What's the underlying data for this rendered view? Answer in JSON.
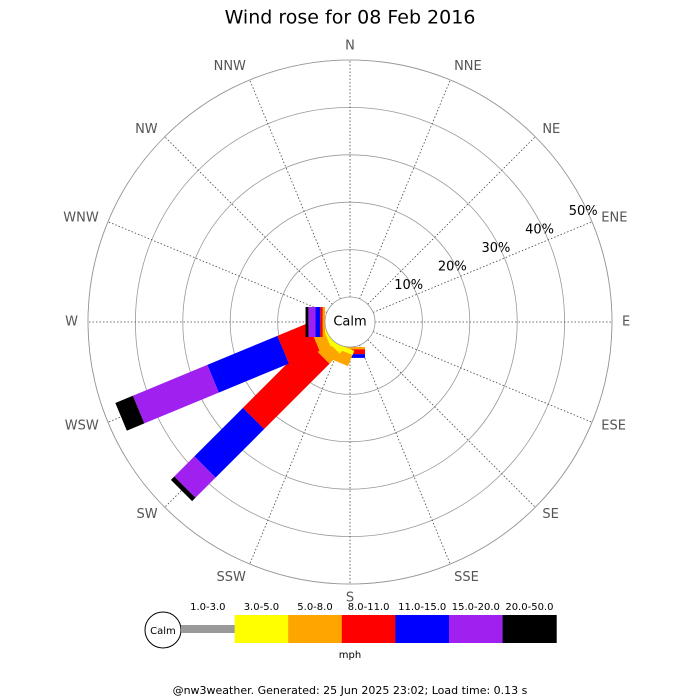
{
  "chart_data": {
    "type": "windrose",
    "title": "Wind rose for 08 Feb 2016",
    "directions": [
      "N",
      "NNE",
      "NE",
      "ENE",
      "E",
      "ESE",
      "SE",
      "SSE",
      "S",
      "SSW",
      "SW",
      "WSW",
      "W",
      "WNW",
      "NW",
      "NNW"
    ],
    "calm_label": "Calm",
    "rlim": [
      0,
      50
    ],
    "rticks": [
      {
        "value": 10,
        "label": "10%"
      },
      {
        "value": 20,
        "label": "20%"
      },
      {
        "value": 30,
        "label": "30%"
      },
      {
        "value": 40,
        "label": "40%"
      },
      {
        "value": 50,
        "label": "50%"
      }
    ],
    "series": [
      {
        "name": "1.0-3.0",
        "color": "#999999",
        "values": [
          0,
          0,
          0,
          0,
          0,
          0,
          0,
          0,
          0,
          0,
          0,
          0,
          0,
          0,
          0,
          0
        ]
      },
      {
        "name": "3.0-5.0",
        "color": "#ffff00",
        "values": [
          0,
          0,
          0,
          0,
          0,
          0,
          0,
          0,
          0,
          1,
          1,
          0.5,
          0,
          0,
          0,
          0
        ]
      },
      {
        "name": "5.0-8.0",
        "color": "#ffa500",
        "values": [
          0,
          0,
          0,
          0,
          0,
          0,
          0,
          0,
          0.5,
          2.5,
          3,
          2.5,
          0.5,
          0,
          0,
          0
        ]
      },
      {
        "name": "8.0-11.0",
        "color": "#ff0000",
        "values": [
          0,
          0,
          0,
          0,
          0,
          0,
          0,
          0,
          1,
          0,
          19.5,
          7,
          0.5,
          0,
          0,
          0
        ]
      },
      {
        "name": "11.0-15.0",
        "color": "#0000ff",
        "values": [
          0,
          0,
          0,
          0,
          0,
          0,
          0,
          0,
          0.8,
          0,
          14.5,
          16,
          1,
          0,
          0,
          0
        ]
      },
      {
        "name": "15.0-20.0",
        "color": "#a020f0",
        "values": [
          0,
          0,
          0,
          0,
          0,
          0,
          0,
          0,
          0,
          0,
          6,
          17,
          1.5,
          0,
          0,
          0
        ]
      },
      {
        "name": "20.0-50.0",
        "color": "#000000",
        "values": [
          0,
          0,
          0,
          0,
          0,
          0,
          0,
          0,
          0,
          0,
          1,
          4,
          0.6,
          0,
          0,
          0
        ]
      }
    ],
    "unit": "mph"
  },
  "footer": "@nw3weather. Generated: 25 Jun 2025 23:02; Load time: 0.13 s"
}
